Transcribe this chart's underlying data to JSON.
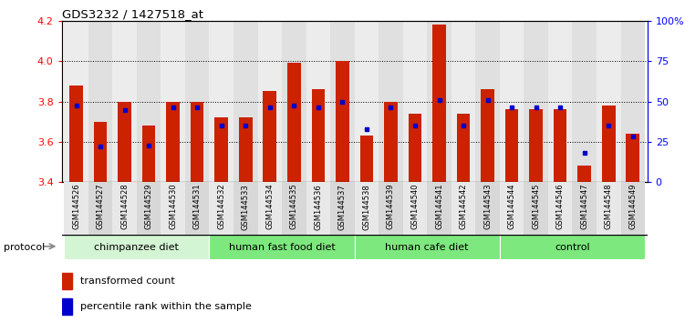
{
  "title": "GDS3232 / 1427518_at",
  "samples": [
    "GSM144526",
    "GSM144527",
    "GSM144528",
    "GSM144529",
    "GSM144530",
    "GSM144531",
    "GSM144532",
    "GSM144533",
    "GSM144534",
    "GSM144535",
    "GSM144536",
    "GSM144537",
    "GSM144538",
    "GSM144539",
    "GSM144540",
    "GSM144541",
    "GSM144542",
    "GSM144543",
    "GSM144544",
    "GSM144545",
    "GSM144546",
    "GSM144547",
    "GSM144548",
    "GSM144549"
  ],
  "red_values": [
    3.88,
    3.7,
    3.8,
    3.68,
    3.8,
    3.8,
    3.72,
    3.72,
    3.85,
    3.99,
    3.86,
    4.0,
    3.63,
    3.8,
    3.74,
    4.18,
    3.74,
    3.86,
    3.76,
    3.76,
    3.76,
    3.48,
    3.78,
    3.64
  ],
  "blue_values": [
    47.5,
    22.0,
    44.5,
    22.5,
    46.5,
    46.5,
    35.0,
    35.0,
    46.5,
    47.5,
    46.5,
    50.0,
    33.0,
    46.5,
    35.0,
    51.0,
    35.0,
    51.0,
    46.5,
    46.5,
    46.5,
    18.0,
    35.0,
    28.0
  ],
  "groups": [
    {
      "label": "chimpanzee diet",
      "start": 0,
      "end": 5
    },
    {
      "label": "human fast food diet",
      "start": 6,
      "end": 11
    },
    {
      "label": "human cafe diet",
      "start": 12,
      "end": 17
    },
    {
      "label": "control",
      "start": 18,
      "end": 23
    }
  ],
  "group_colors": [
    "#d4f5d4",
    "#7de87d",
    "#7de87d",
    "#7de87d"
  ],
  "ylim_left": [
    3.4,
    4.2
  ],
  "ylim_right": [
    0,
    100
  ],
  "y_left_ticks": [
    3.4,
    3.6,
    3.8,
    4.0,
    4.2
  ],
  "y_right_ticks": [
    0,
    25,
    50,
    75,
    100
  ],
  "bar_color": "#cc2200",
  "dot_color": "#0000cc",
  "legend_red": "transformed count",
  "legend_blue": "percentile rank within the sample",
  "protocol_label": "protocol"
}
